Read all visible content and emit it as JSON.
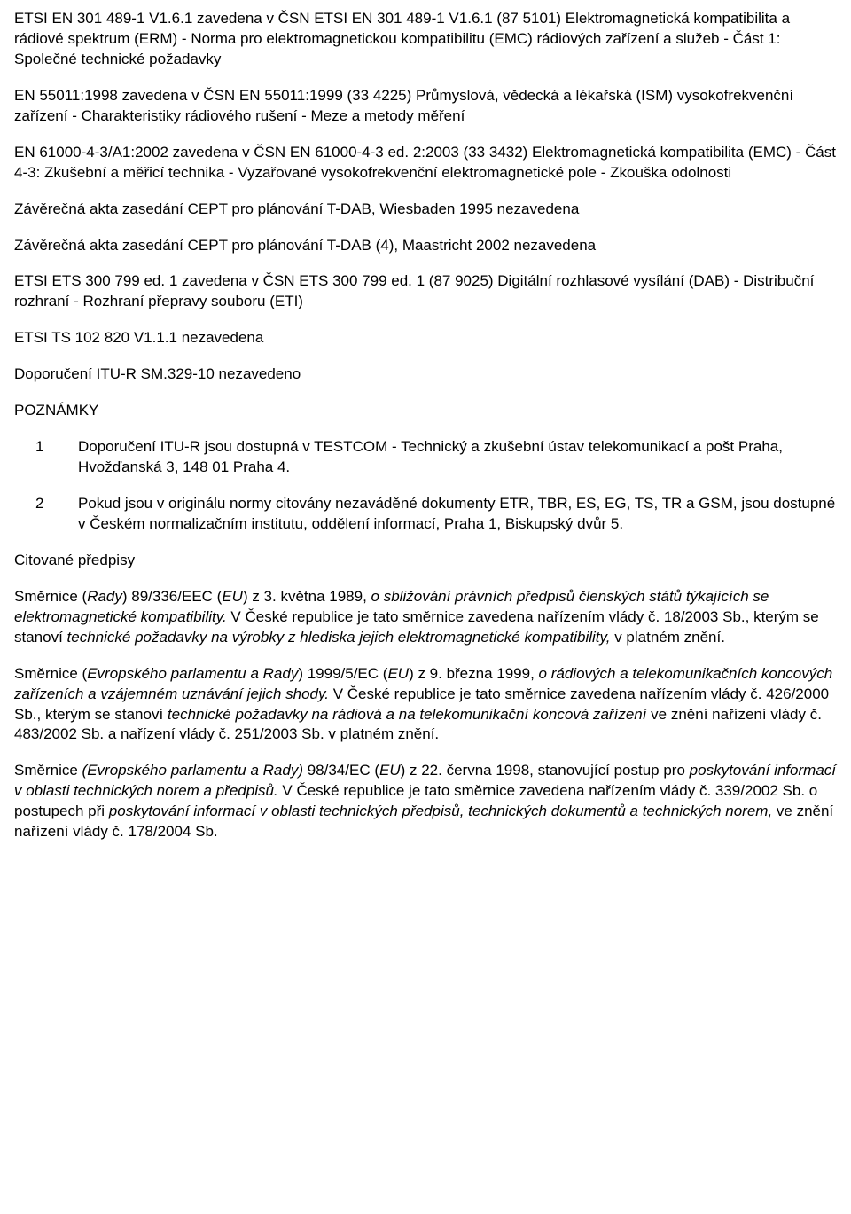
{
  "p1": "ETSI EN 301 489-1 V1.6.1 zavedena v ČSN ETSI EN 301 489-1 V1.6.1 (87 5101) Elektromagnetická kompatibilita a rádiové spektrum (ERM) - Norma pro elektromagnetickou kompatibilitu (EMC) rádiových zařízení a služeb - Část 1: Společné technické požadavky",
  "p2": "EN 55011:1998 zavedena v ČSN EN 55011:1999 (33 4225) Průmyslová, vědecká a lékařská (ISM) vysokofrekvenční zařízení - Charakteristiky rádiového rušení - Meze a metody měření",
  "p3": "EN 61000-4-3/A1:2002 zavedena v ČSN EN 61000-4-3 ed. 2:2003 (33 3432) Elektromagnetická kompatibilita\n(EMC) - Část 4-3: Zkušební a měřicí technika - Vyzařované vysokofrekvenční elektromagnetické pole - Zkouška odolnosti",
  "p4": "Závěrečná akta zasedání CEPT pro plánování T-DAB, Wiesbaden 1995 nezavedena",
  "p5": "Závěrečná akta zasedání CEPT pro plánování T-DAB (4), Maastricht 2002 nezavedena",
  "p6": "ETSI ETS 300 799 ed. 1 zavedena v ČSN ETS 300 799 ed. 1 (87 9025) Digitální rozhlasové vysílání (DAB) - Distribuční rozhraní - Rozhraní přepravy souboru (ETI)",
  "p7": "ETSI TS 102 820 V1.1.1 nezavedena",
  "p8": "Doporučení ITU-R SM.329-10 nezavedeno",
  "notes_heading": "POZNÁMKY",
  "notes": [
    {
      "n": "1",
      "t": "Doporučení ITU-R jsou dostupná v TESTCOM - Technický a zkušební ústav telekomunikací a pošt Praha,\nHvožďanská 3, 148 01 Praha 4."
    },
    {
      "n": "2",
      "t": "Pokud jsou v originálu normy citovány nezaváděné dokumenty ETR, TBR, ES, EG, TS, TR a GSM, jsou dostupné\nv Českém normalizačním institutu, oddělení informací, Praha 1, Biskupský dvůr 5."
    }
  ],
  "cited_heading": "Citované předpisy",
  "dir1": {
    "a": "Směrnice (",
    "b": "Rady",
    "c": ") 89/336/EEC (",
    "d": "EU",
    "e": ") z 3. května 1989, ",
    "f": "o sbližování právních předpisů členských států týkajících se elektromagnetické kompatibility.",
    "g": " V České republice je tato směrnice zavedena nařízením vlády č. 18/2003 Sb., kterým se stanoví ",
    "h": "technické požadavky na výrobky z hlediska jejich elektromagnetické kompatibility,",
    "i": " v platném znění."
  },
  "dir2": {
    "a": "Směrnice (",
    "b": "Evropského parlamentu a Rady",
    "c": ") 1999/5/EC (",
    "d": "EU",
    "e": ") z 9. března 1999, ",
    "f": "o rádiových a telekomunikačních koncových zařízeních a vzájemném uznávání jejich shody.",
    "g": " V České republice je tato směrnice zavedena nařízením vlády č. 426/2000 Sb., kterým se stanoví ",
    "h": "technické požadavky na rádiová a na telekomunikační koncová zařízení",
    "i": " ve znění nařízení vlády č. 483/2002 Sb. a nařízení vlády č. 251/2003 Sb. v platném znění."
  },
  "dir3": {
    "a": "Směrnice ",
    "b": "(Evropského parlamentu a Rady)",
    "c": " 98/34/EC (",
    "d": "EU",
    "e": ") z 22. června 1998, stanovující postup pro ",
    "f": "poskytování informací v oblasti technických norem a předpisů.",
    "g": " V České republice je tato směrnice zavedena nařízením vlády č. 339/2002 Sb. o postupech při ",
    "h": "poskytování informací v oblasti technických předpisů, technických dokumentů a technických norem,",
    "i": " ve znění nařízení vlády č. 178/2004 Sb."
  }
}
